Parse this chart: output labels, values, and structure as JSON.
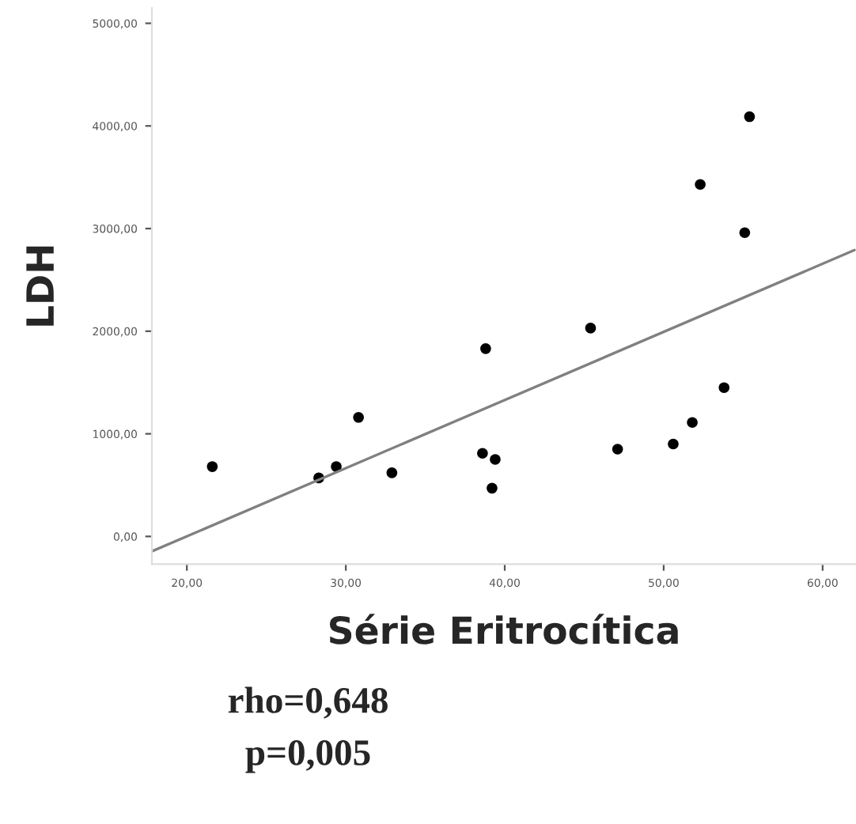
{
  "chart_data": {
    "type": "scatter",
    "xlabel": "Série Eritrocítica",
    "ylabel": "LDH",
    "annotations": [
      "rho=0,648",
      "p=0,005"
    ],
    "series": [
      {
        "color": "#000000",
        "marker": "circle",
        "x": [
          21.6,
          28.3,
          29.4,
          30.8,
          32.9,
          38.6,
          38.8,
          39.4,
          39.2,
          45.4,
          47.1,
          50.6,
          51.8,
          53.8,
          55.1,
          52.3,
          55.4
        ],
        "values": [
          680,
          570,
          680,
          1160,
          620,
          810,
          1830,
          750,
          470,
          2030,
          850,
          900,
          1110,
          1450,
          2960,
          3430,
          4090
        ]
      },
      {
        "type": "line",
        "color": "#808080",
        "x": [
          17.8,
          62.0
        ],
        "values": [
          -145,
          2790
        ]
      }
    ],
    "xlim": [
      17.8,
      62.1
    ],
    "ylim": [
      -270,
      5150
    ],
    "xticks": [
      {
        "value": 20,
        "label": "20,00"
      },
      {
        "value": 30,
        "label": "30,00"
      },
      {
        "value": 40,
        "label": "40,00"
      },
      {
        "value": 50,
        "label": "50,00"
      },
      {
        "value": 60,
        "label": "60,00"
      }
    ],
    "yticks": [
      {
        "value": 0,
        "label": "0,00"
      },
      {
        "value": 1000,
        "label": "1000,00"
      },
      {
        "value": 2000,
        "label": "2000,00"
      },
      {
        "value": 3000,
        "label": "3000,00"
      },
      {
        "value": 4000,
        "label": "4000,00"
      },
      {
        "value": 5000,
        "label": "5000,00"
      }
    ],
    "grid": false,
    "legend": false
  }
}
